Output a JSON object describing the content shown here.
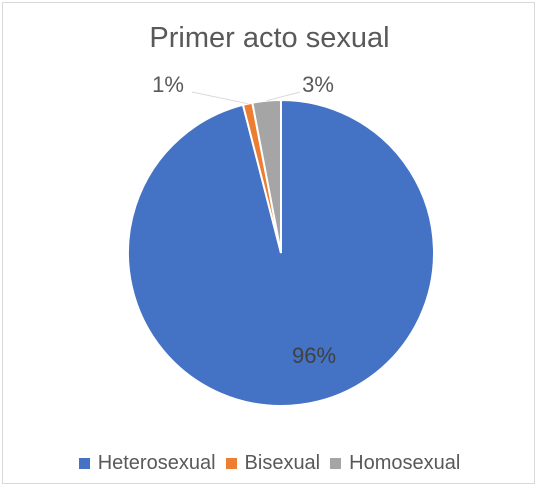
{
  "chart_data": {
    "type": "pie",
    "title": "Primer acto sexual",
    "categories": [
      "Heterosexual",
      "Bisexual",
      "Homosexual"
    ],
    "values": [
      96,
      1,
      3
    ],
    "data_labels": [
      "96%",
      "1%",
      "3%"
    ],
    "colors": [
      "#4472c4",
      "#ed7d31",
      "#a5a5a5"
    ],
    "legend_position": "bottom"
  }
}
